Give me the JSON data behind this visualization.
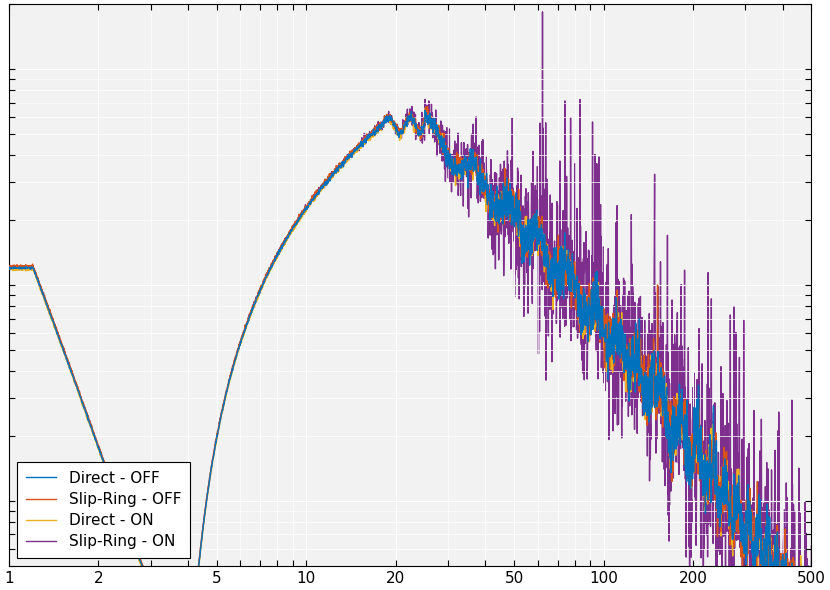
{
  "legend_entries": [
    "Direct - OFF",
    "Slip-Ring - OFF",
    "Direct - ON",
    "Slip-Ring - ON"
  ],
  "colors": [
    "#0072BD",
    "#D95319",
    "#EDB120",
    "#7E2F8E"
  ],
  "figsize": [
    8.3,
    5.9
  ],
  "dpi": 100,
  "xlim": [
    1,
    500
  ],
  "facecolor": "#f2f2f2",
  "grid_color": "#ffffff",
  "legend_loc": "lower left"
}
